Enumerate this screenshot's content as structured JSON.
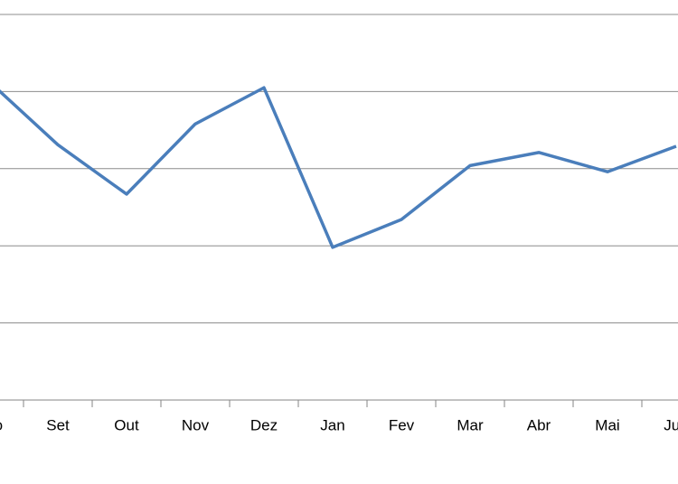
{
  "chart_data": {
    "type": "line",
    "categories": [
      "Ago",
      "Set",
      "Out",
      "Nov",
      "Dez",
      "Jan",
      "Fev",
      "Mar",
      "Abr",
      "Mai",
      "Jun"
    ],
    "series": [
      {
        "color": "#4a7ebb",
        "values": [
          4.13,
          3.31,
          2.67,
          3.58,
          4.05,
          1.98,
          2.34,
          3.04,
          3.21,
          2.96,
          3.29
        ]
      }
    ],
    "ylim": [
      0,
      5
    ],
    "yticks": [
      0,
      1,
      2,
      3,
      4,
      5
    ],
    "grid": true
  }
}
